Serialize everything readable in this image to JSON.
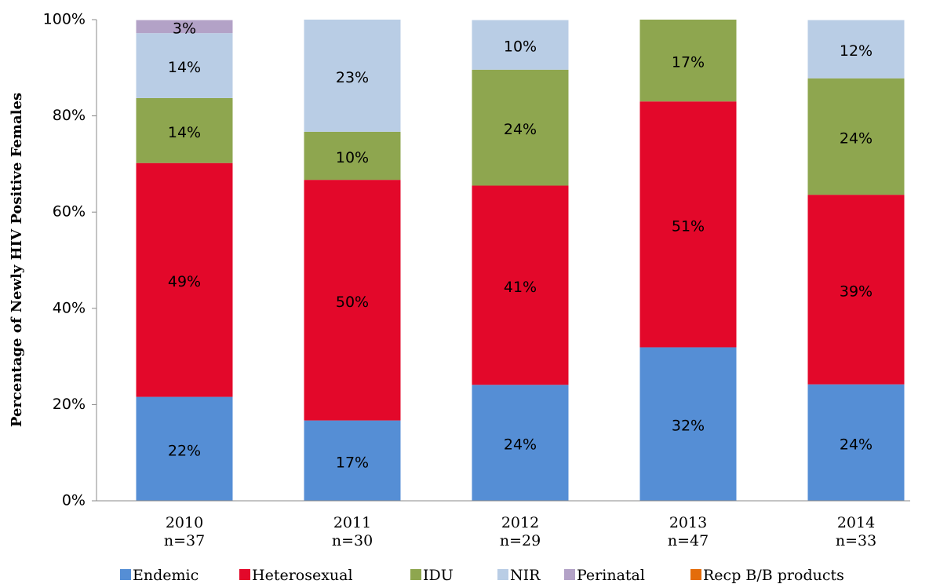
{
  "chart_data": {
    "type": "stacked_bar",
    "y_axis_label": "Percentage of Newly HIV Positive Females",
    "categories": [
      "2010",
      "2011",
      "2012",
      "2013",
      "2014"
    ],
    "sample_sizes": [
      "n=37",
      "n=30",
      "n=29",
      "n=47",
      "n=33"
    ],
    "series": [
      {
        "name": "Endemic",
        "color": "#558ed5",
        "values": [
          21.6,
          16.7,
          24.1,
          31.9,
          24.2
        ],
        "value_labels": [
          "22%",
          "17%",
          "24%",
          "32%",
          "24%"
        ]
      },
      {
        "name": "Heterosexual",
        "color": "#e3082a",
        "values": [
          48.6,
          50.0,
          41.4,
          51.1,
          39.4
        ],
        "value_labels": [
          "49%",
          "50%",
          "41%",
          "51%",
          "39%"
        ]
      },
      {
        "name": "IDU",
        "color": "#8ea64f",
        "values": [
          13.5,
          10.0,
          24.1,
          17.0,
          24.2
        ],
        "value_labels": [
          "14%",
          "10%",
          "24%",
          "17%",
          "24%"
        ]
      },
      {
        "name": "NIR",
        "color": "#b9cde5",
        "values": [
          13.5,
          23.3,
          10.3,
          0,
          12.1
        ],
        "value_labels": [
          "14%",
          "23%",
          "10%",
          null,
          "12%"
        ]
      },
      {
        "name": "Perinatal",
        "color": "#b3a2c7",
        "values": [
          2.7,
          0,
          0,
          0,
          0
        ],
        "value_labels": [
          "3%",
          null,
          null,
          null,
          null
        ]
      },
      {
        "name": "Recp B/B products",
        "color": "#e46c0a",
        "values": [
          0,
          0,
          0,
          0,
          0
        ],
        "value_labels": [
          null,
          null,
          null,
          null,
          null
        ]
      }
    ],
    "ylim": [
      0,
      100
    ],
    "yticks": [
      {
        "value": 0,
        "label": "0%"
      },
      {
        "value": 20,
        "label": "20%"
      },
      {
        "value": 40,
        "label": "40%"
      },
      {
        "value": 60,
        "label": "60%"
      },
      {
        "value": 80,
        "label": "80%"
      },
      {
        "value": 100,
        "label": "100%"
      }
    ]
  }
}
